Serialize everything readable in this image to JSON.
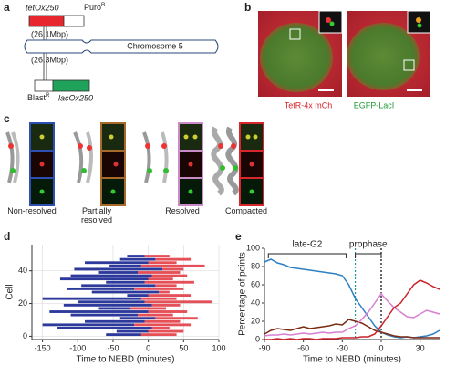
{
  "panel_labels": [
    "a",
    "b",
    "c",
    "d",
    "e"
  ],
  "construct": {
    "top_insert": "tetOx250",
    "top_marker": "Puro",
    "top_marker_sup": "R",
    "top_position": "(26.1Mbp)",
    "chromosome": "Chromosome 5",
    "bottom_position": "(26.3Mbp)",
    "bottom_marker": "Blast",
    "bottom_marker_sup": "R",
    "bottom_insert": "lacOx250"
  },
  "imaging": {
    "channels": [
      "TetR-4x mCh",
      "EGFP-LacI"
    ]
  },
  "states": [
    "Non-resolved",
    "Partially resolved",
    "Resolved",
    "Compacted"
  ],
  "chart_data": [
    {
      "type": "interval",
      "xlabel": "Time to NEBD (minutes)",
      "ylabel": "Cell",
      "y": [
        1,
        3,
        5,
        7,
        9,
        11,
        13,
        15,
        17,
        19,
        21,
        23,
        25,
        27,
        29,
        31,
        33,
        35,
        37,
        39,
        41,
        43,
        45,
        47,
        49
      ],
      "start": [
        -60,
        -45,
        -130,
        -150,
        -90,
        -40,
        -110,
        -140,
        -70,
        -120,
        -100,
        -150,
        -30,
        -80,
        -115,
        -95,
        -60,
        -125,
        -110,
        -70,
        -105,
        -55,
        -90,
        -40,
        -30
      ],
      "switch": [
        -10,
        0,
        5,
        -20,
        -5,
        10,
        -15,
        0,
        -25,
        5,
        -5,
        -10,
        0,
        15,
        -20,
        10,
        -5,
        0,
        5,
        -15,
        20,
        -10,
        0,
        10,
        -5
      ],
      "end": [
        40,
        50,
        30,
        60,
        45,
        70,
        35,
        55,
        25,
        45,
        90,
        40,
        60,
        30,
        50,
        40,
        65,
        35,
        55,
        45,
        50,
        80,
        40,
        60,
        30
      ],
      "colors": [
        "#2d3a9c",
        "#e0303a"
      ],
      "xlim": [
        -165,
        100
      ],
      "ylim": [
        -2,
        56
      ],
      "xticks": [
        -150,
        -100,
        -50,
        0,
        50,
        100
      ],
      "yticks": [
        0,
        20,
        40
      ],
      "grid": true
    },
    {
      "type": "line",
      "xlabel": "Time to NEBD (minutes)",
      "ylabel": "Percentage of points",
      "x": [
        -90,
        -85,
        -80,
        -75,
        -70,
        -65,
        -60,
        -55,
        -50,
        -45,
        -40,
        -35,
        -30,
        -25,
        -20,
        -15,
        -10,
        -5,
        0,
        5,
        10,
        15,
        20,
        25,
        30,
        35,
        40,
        45
      ],
      "series": [
        {
          "color": "#2f7fc1",
          "values": [
            85,
            88,
            84,
            82,
            79,
            78,
            77,
            76,
            75,
            74,
            73,
            72,
            70,
            60,
            45,
            35,
            25,
            15,
            8,
            5,
            3,
            2,
            3,
            2,
            3,
            4,
            6,
            10
          ]
        },
        {
          "color": "#7b2a12",
          "values": [
            6,
            10,
            12,
            11,
            10,
            12,
            14,
            12,
            13,
            14,
            15,
            17,
            16,
            22,
            20,
            18,
            14,
            10,
            8,
            6,
            4,
            3,
            3,
            2,
            2,
            2,
            2,
            2
          ]
        },
        {
          "color": "#d77fd0",
          "values": [
            4,
            5,
            5,
            6,
            5,
            6,
            7,
            6,
            7,
            8,
            7,
            8,
            8,
            12,
            15,
            22,
            30,
            40,
            50,
            42,
            35,
            30,
            25,
            24,
            28,
            32,
            30,
            28
          ]
        },
        {
          "color": "#c8222a",
          "values": [
            0,
            0,
            1,
            0,
            1,
            0,
            1,
            1,
            0,
            1,
            1,
            1,
            2,
            2,
            2,
            3,
            3,
            6,
            15,
            25,
            35,
            40,
            50,
            60,
            65,
            62,
            58,
            55
          ]
        }
      ],
      "vlines": [
        {
          "value": -20,
          "color": "#1a9a8a"
        },
        {
          "value": 0,
          "color": "#000000"
        }
      ],
      "phases": [
        {
          "label": "late-G2",
          "start": -87,
          "end": -27
        },
        {
          "label": "prophase",
          "start": -20,
          "end": 0
        }
      ],
      "xlim": [
        -90,
        45
      ],
      "ylim": [
        0,
        100
      ],
      "xticks": [
        -90,
        -60,
        -30,
        0,
        30
      ],
      "yticks": [
        0,
        20,
        40,
        60,
        80,
        100
      ],
      "grid": false
    }
  ]
}
